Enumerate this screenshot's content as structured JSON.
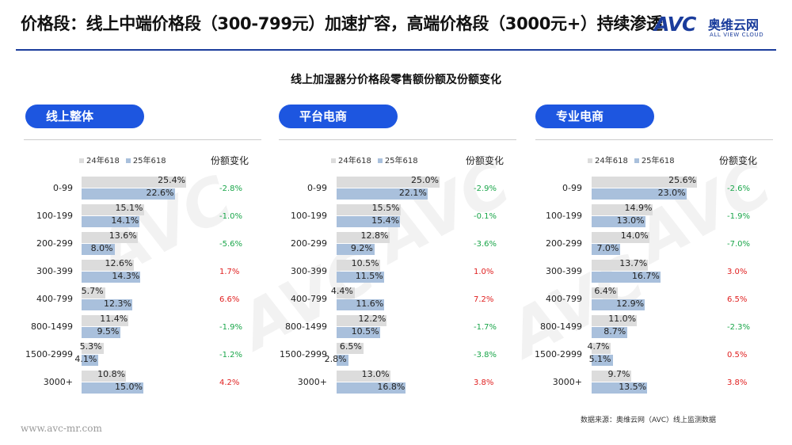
{
  "header": {
    "title": "价格段：线上中端价格段（300-799元）加速扩容，高端价格段（3000元+）持续渗透",
    "logo_avc": "AVC",
    "logo_cn": "奥维云网",
    "logo_en": "ALL VIEW CLOUD"
  },
  "colors": {
    "brand": "#1a3c9c",
    "pill": "#1d56e0",
    "bar_2024": "#dcdcdc",
    "bar_2025": "#a9c0dc",
    "down": "#1aa64a",
    "up": "#e02020"
  },
  "chart_title": "线上加湿器分价格段零售额份额及份额变化",
  "legend": {
    "s1": "24年618",
    "s2": "25年618"
  },
  "change_header": "份额变化",
  "chart_data": [
    {
      "type": "bar",
      "title": "线上整体",
      "categories": [
        "0-99",
        "100-199",
        "200-299",
        "300-399",
        "400-799",
        "800-1499",
        "1500-2999",
        "3000+"
      ],
      "series": [
        {
          "name": "24年618",
          "values": [
            25.4,
            15.1,
            13.6,
            12.6,
            5.7,
            11.4,
            5.3,
            10.8
          ]
        },
        {
          "name": "25年618",
          "values": [
            22.6,
            14.1,
            8.0,
            14.3,
            12.3,
            9.5,
            4.1,
            15.0
          ]
        }
      ],
      "changes": [
        "-2.8%",
        "-1.0%",
        "-5.6%",
        "1.7%",
        "6.6%",
        "-1.9%",
        "-1.2%",
        "4.2%"
      ]
    },
    {
      "type": "bar",
      "title": "平台电商",
      "categories": [
        "0-99",
        "100-199",
        "200-299",
        "300-399",
        "400-799",
        "800-1499",
        "1500-2999",
        "3000+"
      ],
      "series": [
        {
          "name": "24年618",
          "values": [
            25.0,
            15.5,
            12.8,
            10.5,
            4.4,
            12.2,
            6.5,
            13.0
          ]
        },
        {
          "name": "25年618",
          "values": [
            22.1,
            15.4,
            9.2,
            11.5,
            11.6,
            10.5,
            2.8,
            16.8
          ]
        }
      ],
      "changes": [
        "-2.9%",
        "-0.1%",
        "-3.6%",
        "1.0%",
        "7.2%",
        "-1.7%",
        "-3.8%",
        "3.8%"
      ]
    },
    {
      "type": "bar",
      "title": "专业电商",
      "categories": [
        "0-99",
        "100-199",
        "200-299",
        "300-399",
        "400-799",
        "800-1499",
        "1500-2999",
        "3000+"
      ],
      "series": [
        {
          "name": "24年618",
          "values": [
            25.6,
            14.9,
            14.0,
            13.7,
            6.4,
            11.0,
            4.7,
            9.7
          ]
        },
        {
          "name": "25年618",
          "values": [
            23.0,
            13.0,
            7.0,
            16.7,
            12.9,
            8.7,
            5.1,
            13.5
          ]
        }
      ],
      "changes": [
        "-2.6%",
        "-1.9%",
        "-7.0%",
        "3.0%",
        "6.5%",
        "-2.3%",
        "0.5%",
        "3.8%"
      ]
    }
  ],
  "footer": {
    "source": "数据来源：奥维云网（AVC）线上监测数据",
    "url": "www.avc-mr.com"
  }
}
